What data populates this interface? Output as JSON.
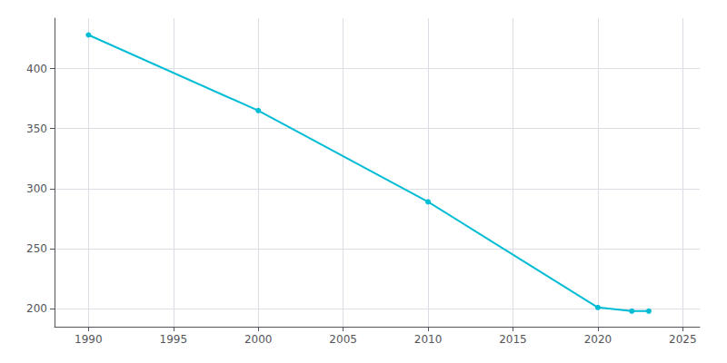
{
  "chart_data": {
    "type": "line",
    "x": [
      1990,
      2000,
      2010,
      2020,
      2022,
      2023
    ],
    "values": [
      428,
      365,
      289,
      201,
      198,
      198
    ],
    "color": "#00BCD4",
    "marker": "circle",
    "xlim": [
      1988,
      2026
    ],
    "ylim": [
      185,
      442
    ],
    "xticks": [
      1990,
      1995,
      2000,
      2005,
      2010,
      2015,
      2020,
      2025
    ],
    "yticks": [
      200,
      250,
      300,
      350,
      400
    ],
    "grid": true
  }
}
